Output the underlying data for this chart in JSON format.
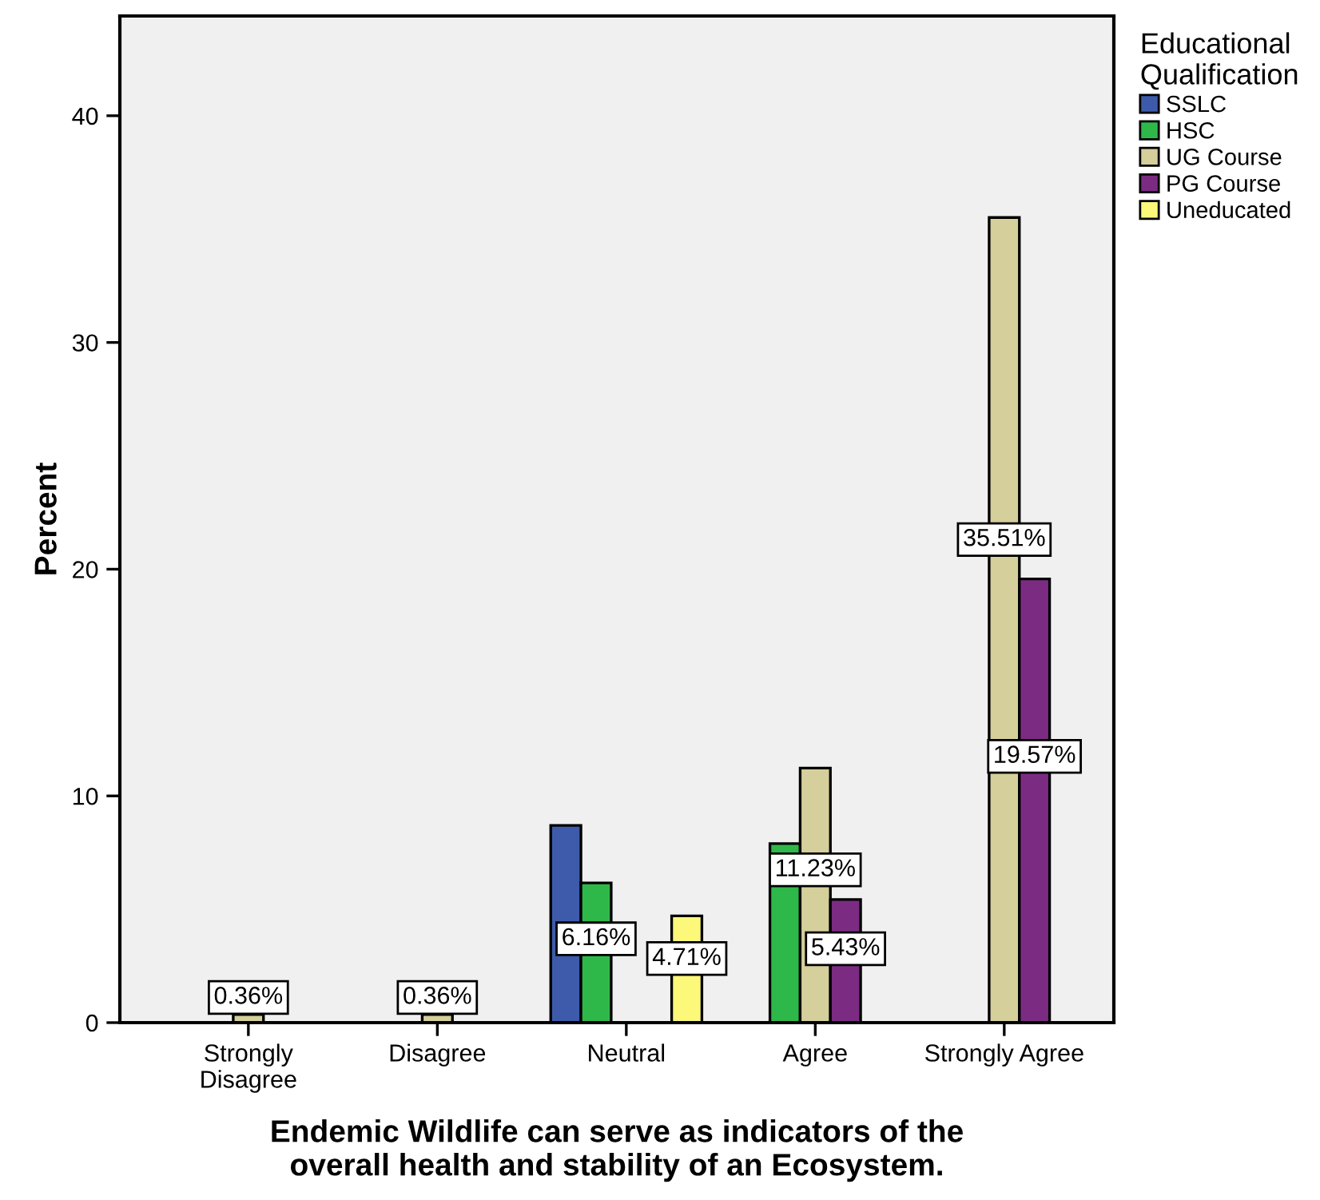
{
  "chart_data": {
    "type": "bar",
    "xlabel": "Endemic Wildlife can serve as indicators of the\noverall health and stability of an Ecosystem.",
    "ylabel": "Percent",
    "legend_title": "Educational\nQualification",
    "legend": "right",
    "grid": false,
    "categories": [
      "Strongly\nDisagree",
      "Disagree",
      "Neutral",
      "Agree",
      "Strongly Agree"
    ],
    "ylim": [
      0,
      44.4
    ],
    "yticks": [
      0,
      10,
      20,
      30,
      40
    ],
    "series": [
      {
        "name": "SSLC",
        "color": "#3e5bab",
        "values": [
          null,
          null,
          8.7,
          null,
          null
        ],
        "value_labels": [
          null,
          null,
          null,
          null,
          null
        ]
      },
      {
        "name": "HSC",
        "color": "#2fb84a",
        "values": [
          null,
          null,
          6.16,
          7.9,
          null
        ],
        "value_labels": [
          null,
          null,
          "6.16%",
          null,
          null
        ]
      },
      {
        "name": "UG Course",
        "color": "#d4cf9b",
        "values": [
          0.36,
          0.36,
          null,
          11.23,
          35.51
        ],
        "value_labels": [
          "0.36%",
          "0.36%",
          null,
          "11.23%",
          "35.51%"
        ]
      },
      {
        "name": "PG Course",
        "color": "#7b2c82",
        "values": [
          null,
          null,
          null,
          5.43,
          19.57
        ],
        "value_labels": [
          null,
          null,
          null,
          "5.43%",
          "19.57%"
        ]
      },
      {
        "name": "Uneducated",
        "color": "#fbf87a",
        "values": [
          null,
          null,
          4.71,
          null,
          null
        ],
        "value_labels": [
          null,
          null,
          "4.71%",
          null,
          null
        ]
      }
    ]
  }
}
